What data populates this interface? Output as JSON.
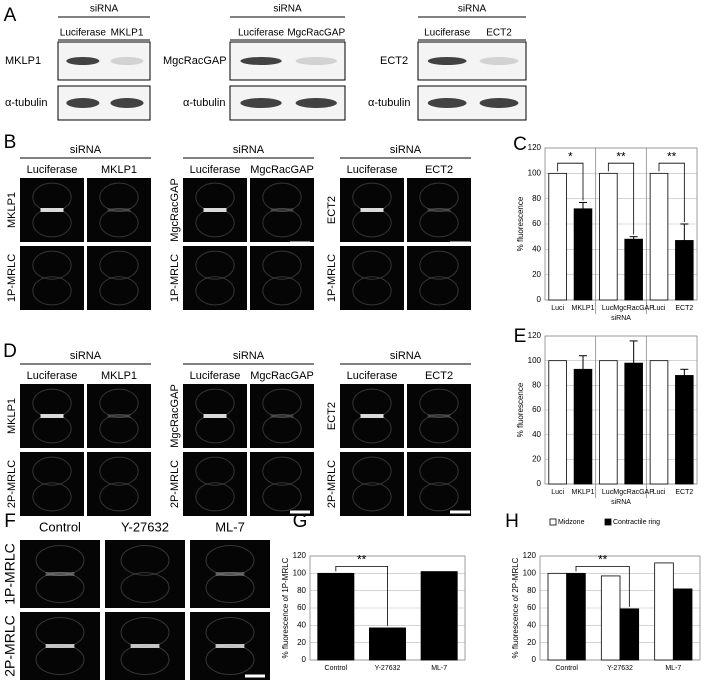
{
  "panel_labels": [
    "A",
    "B",
    "C",
    "D",
    "E",
    "F",
    "G",
    "H"
  ],
  "blots": [
    {
      "header": "siRNA",
      "lanes": [
        "Luciferase",
        "MKLP1"
      ],
      "rows": [
        "MKLP1",
        "α-tubulin"
      ]
    },
    {
      "header": "siRNA",
      "lanes": [
        "Luciferase",
        "MgcRacGAP"
      ],
      "rows": [
        "MgcRacGAP",
        "α-tubulin"
      ]
    },
    {
      "header": "siRNA",
      "lanes": [
        "Luciferase",
        "ECT2"
      ],
      "rows": [
        "ECT2",
        "α-tubulin"
      ]
    }
  ],
  "micrographs_b": [
    {
      "header": "siRNA",
      "columns": [
        "Luciferase",
        "MKLP1"
      ],
      "rows": [
        "MKLP1",
        "1P-MRLC"
      ]
    },
    {
      "header": "siRNA",
      "columns": [
        "Luciferase",
        "MgcRacGAP"
      ],
      "rows": [
        "MgcRacGAP",
        "1P-MRLC"
      ]
    },
    {
      "header": "siRNA",
      "columns": [
        "Luciferase",
        "ECT2"
      ],
      "rows": [
        "ECT2",
        "1P-MRLC"
      ]
    }
  ],
  "micrographs_d": [
    {
      "header": "siRNA",
      "columns": [
        "Luciferase",
        "MKLP1"
      ],
      "rows": [
        "MKLP1",
        "2P-MRLC"
      ]
    },
    {
      "header": "siRNA",
      "columns": [
        "Luciferase",
        "MgcRacGAP"
      ],
      "rows": [
        "MgcRacGAP",
        "2P-MRLC"
      ]
    },
    {
      "header": "siRNA",
      "columns": [
        "Luciferase",
        "ECT2"
      ],
      "rows": [
        "ECT2",
        "2P-MRLC"
      ]
    }
  ],
  "micrographs_f": {
    "columns": [
      "Control",
      "Y-27632",
      "ML-7"
    ],
    "rows": [
      "1P-MRLC",
      "2P-MRLC"
    ]
  },
  "chart_data": [
    {
      "type": "bar",
      "categories": [
        "Luci",
        "MKLP1",
        "Luci",
        "MgcRacGAP",
        "Luci",
        "ECT2"
      ],
      "values": [
        100,
        72,
        100,
        48,
        100,
        47
      ],
      "errors": [
        null,
        5,
        null,
        2,
        null,
        13
      ],
      "bar_colors": [
        "#ffffff",
        "#000000",
        "#ffffff",
        "#000000",
        "#ffffff",
        "#000000"
      ],
      "ylabel": "% fluorescence",
      "xlabel": "siRNA",
      "ylim": [
        0,
        120
      ],
      "yticks": [
        0,
        20,
        40,
        60,
        80,
        100,
        120
      ],
      "grid": true,
      "annotations": [
        "*",
        "**",
        "**"
      ]
    },
    {
      "type": "bar",
      "categories": [
        "Luci",
        "MKLP1",
        "Luci",
        "MgcRacGAP",
        "Luci",
        "ECT2"
      ],
      "values": [
        100,
        93,
        100,
        98,
        100,
        88
      ],
      "errors": [
        null,
        11,
        null,
        18,
        null,
        5
      ],
      "bar_colors": [
        "#ffffff",
        "#000000",
        "#ffffff",
        "#000000",
        "#ffffff",
        "#000000"
      ],
      "ylabel": "% fluorescence",
      "xlabel": "siRNA",
      "ylim": [
        0,
        120
      ],
      "yticks": [
        0,
        20,
        40,
        60,
        80,
        100,
        120
      ],
      "grid": true
    },
    {
      "type": "bar",
      "categories": [
        "Control",
        "Y-27632",
        "ML-7"
      ],
      "values": [
        100,
        37,
        102
      ],
      "color": "#000000",
      "ylabel": "% fluorescence of 1P-MRLC",
      "ylim": [
        0,
        120
      ],
      "yticks": [
        0,
        20,
        40,
        60,
        80,
        100,
        120
      ],
      "grid": true,
      "annotations": [
        "**"
      ]
    },
    {
      "type": "grouped_bar",
      "categories": [
        "Control",
        "Y-27632",
        "ML-7"
      ],
      "series": [
        {
          "name": "Midzone",
          "color": "#ffffff",
          "values": [
            100,
            97,
            112
          ]
        },
        {
          "name": "Contractile ring",
          "color": "#000000",
          "values": [
            100,
            59,
            82
          ]
        }
      ],
      "ylabel": "% fluorescence of 2P-MRLC",
      "ylim": [
        0,
        120
      ],
      "yticks": [
        0,
        20,
        40,
        60,
        80,
        100,
        120
      ],
      "grid": true,
      "annotations": [
        "**"
      ]
    }
  ]
}
